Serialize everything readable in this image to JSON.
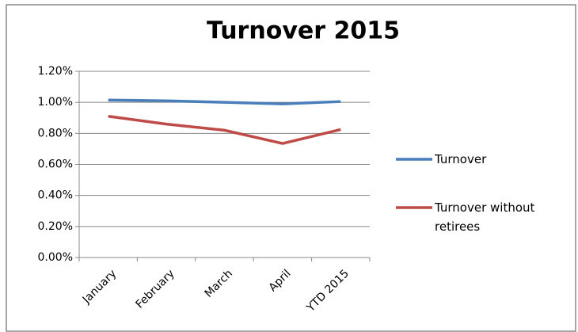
{
  "chart_data": {
    "type": "line",
    "title": "Turnover 2015",
    "categories": [
      "January",
      "February",
      "March",
      "April",
      "YTD 2015"
    ],
    "series": [
      {
        "name": "Turnover",
        "color": "#4a7ebb",
        "values": [
          1.015,
          1.01,
          1.0,
          0.99,
          1.005
        ]
      },
      {
        "name": "Turnover without retirees",
        "color": "#be4b48",
        "values": [
          0.91,
          0.86,
          0.82,
          0.735,
          0.825
        ]
      }
    ],
    "ylim": [
      0,
      1.2
    ],
    "yticks": [
      {
        "value": 0,
        "label": "0.00%"
      },
      {
        "value": 0.2,
        "label": "0.20%"
      },
      {
        "value": 0.4,
        "label": "0.40%"
      },
      {
        "value": 0.6,
        "label": "0.60%"
      },
      {
        "value": 0.8,
        "label": "0.80%"
      },
      {
        "value": 1.0,
        "label": "1.00%"
      },
      {
        "value": 1.2,
        "label": "1.20%"
      }
    ],
    "grid": true,
    "legend": "right"
  }
}
